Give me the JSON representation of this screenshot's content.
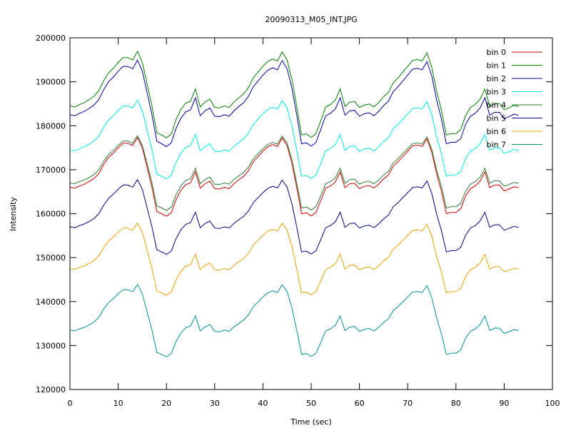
{
  "chart_data": {
    "type": "line",
    "title": "20090313_M05_INT.JPG",
    "xlabel": "Time (sec)",
    "ylabel": "Intensity",
    "xlim": [
      0,
      100
    ],
    "ylim": [
      120000,
      200000
    ],
    "x_ticks": [
      0,
      10,
      20,
      30,
      40,
      50,
      60,
      70,
      80,
      90,
      100
    ],
    "y_ticks": [
      120000,
      130000,
      140000,
      150000,
      160000,
      170000,
      180000,
      190000,
      200000
    ],
    "grid": false,
    "legend_position": "top-right",
    "series": [
      {
        "name": "bin 0",
        "color": "#cc0000",
        "base": 166000,
        "amp": 1.0
      },
      {
        "name": "bin 1",
        "color": "#008000",
        "base": 184500,
        "amp": 1.1
      },
      {
        "name": "bin 2",
        "color": "#0000a0",
        "base": 182500,
        "amp": 1.1
      },
      {
        "name": "bin 3",
        "color": "#00e5e5",
        "base": 174500,
        "amp": 1.0
      },
      {
        "name": "bin 4",
        "color": "#2e7d32",
        "base": 167000,
        "amp": 0.95
      },
      {
        "name": "bin 5",
        "color": "#000080",
        "base": 157000,
        "amp": 0.95
      },
      {
        "name": "bin 6",
        "color": "#e8a000",
        "base": 147500,
        "amp": 0.92
      },
      {
        "name": "bin 7",
        "color": "#009090",
        "base": 133500,
        "amp": 0.92
      }
    ],
    "shape": {
      "t": [
        0,
        1,
        2,
        3,
        4,
        5,
        6,
        7,
        8,
        9,
        10,
        11,
        12,
        13,
        14,
        15,
        16,
        17,
        18,
        19,
        20,
        21,
        22,
        23,
        24,
        25,
        26,
        27,
        28,
        29,
        30,
        31,
        32,
        33,
        34,
        35,
        36,
        37,
        38,
        39,
        40,
        41,
        42,
        43,
        44,
        45,
        46,
        47,
        48,
        49,
        50,
        51,
        52,
        53,
        54,
        55,
        56,
        57,
        58,
        59,
        60,
        61,
        62,
        63,
        64,
        65,
        66,
        67,
        68,
        69,
        70,
        71,
        72,
        73,
        74,
        75,
        76,
        77,
        78,
        79,
        80,
        81,
        82,
        83,
        84,
        85,
        86,
        87,
        88,
        89,
        90,
        91,
        92,
        93
      ],
      "delta": [
        0,
        -200,
        300,
        700,
        1300,
        2000,
        3200,
        5200,
        6800,
        7800,
        9000,
        10000,
        10000,
        9500,
        11300,
        9000,
        4500,
        0,
        -5500,
        -6000,
        -6600,
        -5800,
        -2800,
        -700,
        600,
        1000,
        3500,
        -200,
        800,
        1400,
        -300,
        -400,
        0,
        -300,
        800,
        1700,
        2500,
        3800,
        5800,
        7000,
        8200,
        9200,
        9700,
        9300,
        11200,
        9500,
        5500,
        0,
        -6000,
        -5800,
        -6500,
        -5700,
        -3000,
        -200,
        300,
        1200,
        3500,
        -100,
        800,
        900,
        -300,
        200,
        400,
        -200,
        700,
        1900,
        2800,
        4800,
        5800,
        7000,
        8200,
        9400,
        9600,
        9300,
        11000,
        8000,
        3000,
        -900,
        -6000,
        -5700,
        -5700,
        -4900,
        -2000,
        -300,
        300,
        1400,
        3500,
        -100,
        500,
        500,
        -800,
        -400,
        100,
        -100
      ]
    }
  }
}
